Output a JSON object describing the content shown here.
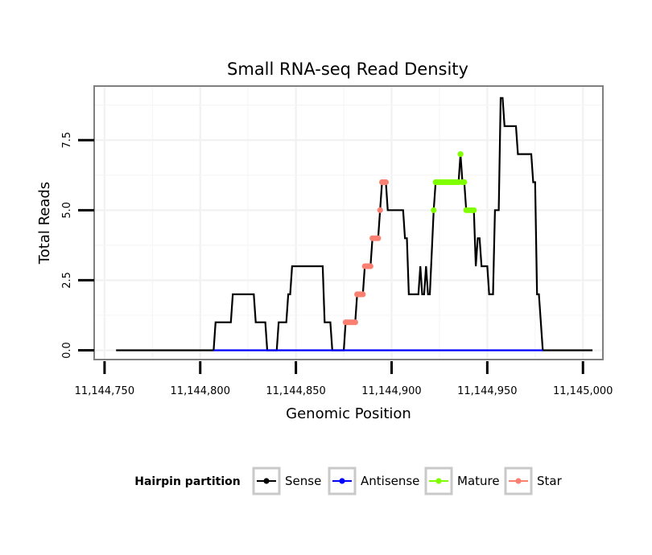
{
  "chart_data": {
    "type": "line",
    "title": "Small RNA-seq Read Density",
    "xlabel": "Genomic Position",
    "ylabel": "Total Reads",
    "xlim": [
      11144745,
      11145010
    ],
    "ylim": [
      -0.3,
      9.4
    ],
    "x_ticks": [
      {
        "value": 11144750,
        "label": "11,144,750"
      },
      {
        "value": 11144800,
        "label": "11,144,800"
      },
      {
        "value": 11144850,
        "label": "11,144,850"
      },
      {
        "value": 11144900,
        "label": "11,144,900"
      },
      {
        "value": 11144950,
        "label": "11,144,950"
      },
      {
        "value": 11145000,
        "label": "11,145,000"
      }
    ],
    "y_ticks": [
      {
        "value": 0,
        "label": "0.0"
      },
      {
        "value": 2.5,
        "label": "2.5"
      },
      {
        "value": 5,
        "label": "5.0"
      },
      {
        "value": 7.5,
        "label": "7.5"
      }
    ],
    "legend": {
      "title": "Hairpin partition",
      "position": "bottom",
      "entries": [
        {
          "name": "Sense",
          "color": "#000000"
        },
        {
          "name": "Antisense",
          "color": "#0000ff"
        },
        {
          "name": "Mature",
          "color": "#7fff00"
        },
        {
          "name": "Star",
          "color": "#fa8072"
        }
      ]
    },
    "series": [
      {
        "name": "Sense",
        "color": "#000000",
        "points": [
          [
            11144756,
            0
          ],
          [
            11144807,
            0
          ],
          [
            11144808,
            1
          ],
          [
            11144816,
            1
          ],
          [
            11144817,
            2
          ],
          [
            11144828,
            2
          ],
          [
            11144829,
            1
          ],
          [
            11144834,
            1
          ],
          [
            11144835,
            0
          ],
          [
            11144840,
            0
          ],
          [
            11144841,
            1
          ],
          [
            11144845,
            1
          ],
          [
            11144846,
            2
          ],
          [
            11144847,
            2
          ],
          [
            11144848,
            3
          ],
          [
            11144864,
            3
          ],
          [
            11144865,
            1
          ],
          [
            11144868,
            1
          ],
          [
            11144869,
            0
          ],
          [
            11144875,
            0
          ],
          [
            11144876,
            1
          ],
          [
            11144881,
            1
          ],
          [
            11144882,
            2
          ],
          [
            11144885,
            2
          ],
          [
            11144886,
            3
          ],
          [
            11144889,
            3
          ],
          [
            11144890,
            4
          ],
          [
            11144893,
            4
          ],
          [
            11144894,
            5
          ],
          [
            11144895,
            6
          ],
          [
            11144897,
            6
          ],
          [
            11144898,
            5
          ],
          [
            11144906,
            5
          ],
          [
            11144907,
            4
          ],
          [
            11144908,
            4
          ],
          [
            11144909,
            2
          ],
          [
            11144914,
            2
          ],
          [
            11144915,
            3
          ],
          [
            11144916,
            2
          ],
          [
            11144917,
            2
          ],
          [
            11144918,
            3
          ],
          [
            11144919,
            2
          ],
          [
            11144920,
            2
          ],
          [
            11144922,
            5
          ],
          [
            11144923,
            6
          ],
          [
            11144935,
            6
          ],
          [
            11144936,
            7
          ],
          [
            11144937,
            6
          ],
          [
            11144938,
            6
          ],
          [
            11144939,
            5
          ],
          [
            11144943,
            5
          ],
          [
            11144944,
            3
          ],
          [
            11144945,
            4
          ],
          [
            11144946,
            4
          ],
          [
            11144947,
            3
          ],
          [
            11144950,
            3
          ],
          [
            11144951,
            2
          ],
          [
            11144953,
            2
          ],
          [
            11144954,
            5
          ],
          [
            11144956,
            5
          ],
          [
            11144957,
            9
          ],
          [
            11144958,
            9
          ],
          [
            11144959,
            8
          ],
          [
            11144965,
            8
          ],
          [
            11144966,
            7
          ],
          [
            11144973,
            7
          ],
          [
            11144974,
            6
          ],
          [
            11144975,
            6
          ],
          [
            11144976,
            2
          ],
          [
            11144977,
            2
          ],
          [
            11144979,
            0
          ],
          [
            11145005,
            0
          ]
        ]
      },
      {
        "name": "Antisense",
        "color": "#0000ff",
        "points": [
          [
            11144807,
            0
          ],
          [
            11144979,
            0
          ]
        ]
      },
      {
        "name": "Mature",
        "color": "#7fff00",
        "points": [
          [
            11144922,
            5
          ],
          [
            11144923,
            6
          ],
          [
            11144924,
            6
          ],
          [
            11144925,
            6
          ],
          [
            11144926,
            6
          ],
          [
            11144927,
            6
          ],
          [
            11144928,
            6
          ],
          [
            11144929,
            6
          ],
          [
            11144930,
            6
          ],
          [
            11144931,
            6
          ],
          [
            11144932,
            6
          ],
          [
            11144933,
            6
          ],
          [
            11144934,
            6
          ],
          [
            11144935,
            6
          ],
          [
            11144936,
            7
          ],
          [
            11144937,
            6
          ],
          [
            11144938,
            6
          ],
          [
            11144939,
            5
          ],
          [
            11144940,
            5
          ],
          [
            11144941,
            5
          ],
          [
            11144942,
            5
          ],
          [
            11144943,
            5
          ]
        ]
      },
      {
        "name": "Star",
        "color": "#fa8072",
        "points": [
          [
            11144876,
            1
          ],
          [
            11144877,
            1
          ],
          [
            11144878,
            1
          ],
          [
            11144879,
            1
          ],
          [
            11144880,
            1
          ],
          [
            11144881,
            1
          ],
          [
            11144882,
            2
          ],
          [
            11144883,
            2
          ],
          [
            11144884,
            2
          ],
          [
            11144885,
            2
          ],
          [
            11144886,
            3
          ],
          [
            11144887,
            3
          ],
          [
            11144888,
            3
          ],
          [
            11144889,
            3
          ],
          [
            11144890,
            4
          ],
          [
            11144891,
            4
          ],
          [
            11144892,
            4
          ],
          [
            11144893,
            4
          ],
          [
            11144894,
            5
          ],
          [
            11144895,
            6
          ],
          [
            11144896,
            6
          ],
          [
            11144897,
            6
          ]
        ]
      }
    ]
  }
}
